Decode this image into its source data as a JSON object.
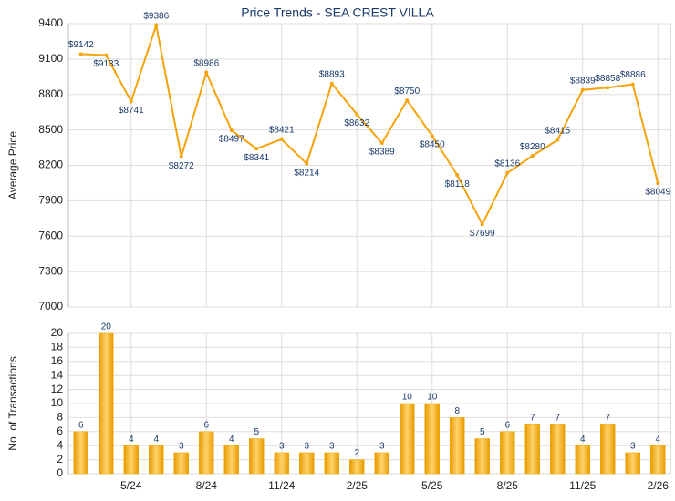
{
  "chart_data": [
    {
      "type": "line",
      "title": "Price Trends - SEA CREST VILLA",
      "ylabel": "Average Price",
      "color": "#f5a30a",
      "label_color": "#1a3a6a",
      "values": [
        9142,
        9133,
        8741,
        9386,
        8272,
        8986,
        8497,
        8341,
        8421,
        8214,
        8893,
        8632,
        8389,
        8750,
        8450,
        8118,
        7699,
        8136,
        8280,
        8415,
        8839,
        8858,
        8886,
        8049
      ],
      "value_labels": [
        "$9142",
        "$9133",
        "$8741",
        "$9386",
        "$8272",
        "$8986",
        "$8497",
        "$8341",
        "$8421",
        "$8214",
        "$8893",
        "$8632",
        "$8389",
        "$8750",
        "$8450",
        "$8118",
        "$7699",
        "$8136",
        "$8280",
        "$8415",
        "$8839",
        "$8858",
        "$8886",
        "$8049"
      ],
      "ylim": [
        7000,
        9400
      ],
      "yticks": [
        7000,
        7300,
        7600,
        7900,
        8200,
        8500,
        8800,
        9100,
        9400
      ],
      "grid": true
    },
    {
      "type": "bar",
      "ylabel": "No. of Transactions",
      "color": "#f2a900",
      "label_color": "#1a3a6a",
      "categories": [
        null,
        null,
        "5/24",
        null,
        null,
        "8/24",
        null,
        null,
        "11/24",
        null,
        null,
        "2/25",
        null,
        null,
        "5/25",
        null,
        null,
        "8/25",
        null,
        null,
        "11/25",
        null,
        null,
        "2/26"
      ],
      "values": [
        6,
        20,
        4,
        4,
        3,
        6,
        4,
        5,
        3,
        3,
        3,
        2,
        3,
        10,
        10,
        8,
        5,
        6,
        7,
        7,
        4,
        7,
        3,
        4
      ],
      "ylim": [
        0,
        20
      ],
      "yticks": [
        0,
        2,
        4,
        6,
        8,
        10,
        12,
        14,
        16,
        18,
        20
      ],
      "grid": true
    }
  ]
}
